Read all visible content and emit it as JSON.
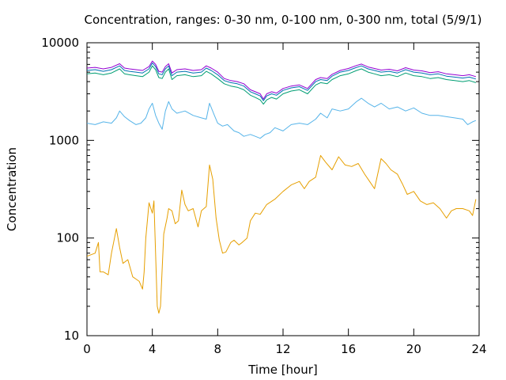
{
  "chart_data": {
    "type": "line",
    "title": "Concentration, ranges: 0-30 nm, 0-100 nm, 0-300 nm, total (5/9/1)",
    "xlabel": "Time [hour]",
    "ylabel": "Concentration",
    "xlim": [
      0,
      24
    ],
    "ylim": [
      10,
      10000
    ],
    "yscale": "log",
    "grid": false,
    "legend": "none",
    "x_ticks": [
      0,
      4,
      8,
      12,
      16,
      20,
      24
    ],
    "x_tick_labels": [
      "0",
      "4",
      "8",
      "12",
      "16",
      "20",
      "24"
    ],
    "y_ticks": [
      10,
      100,
      1000,
      10000
    ],
    "y_tick_labels": [
      "10",
      "100",
      "1000",
      "10000"
    ],
    "series": [
      {
        "color": "#e69f00",
        "x": [
          0,
          0.5,
          0.7,
          0.8,
          1.0,
          1.3,
          1.5,
          1.8,
          2.0,
          2.2,
          2.5,
          2.8,
          3.0,
          3.2,
          3.4,
          3.5,
          3.6,
          3.8,
          4.0,
          4.1,
          4.3,
          4.4,
          4.5,
          4.7,
          4.9,
          5.0,
          5.2,
          5.4,
          5.6,
          5.8,
          6.0,
          6.2,
          6.5,
          6.8,
          7.0,
          7.3,
          7.5,
          7.7,
          7.9,
          8.1,
          8.3,
          8.5,
          8.8,
          9.0,
          9.3,
          9.5,
          9.8,
          10.0,
          10.3,
          10.6,
          11.0,
          11.5,
          12.0,
          12.5,
          13.0,
          13.3,
          13.6,
          14.0,
          14.3,
          14.6,
          15.0,
          15.4,
          15.8,
          16.2,
          16.6,
          17.0,
          17.3,
          17.6,
          18.0,
          18.3,
          18.6,
          19.0,
          19.3,
          19.6,
          20.0,
          20.4,
          20.8,
          21.2,
          21.6,
          22.0,
          22.3,
          22.6,
          23.0,
          23.4,
          23.6,
          23.8
        ],
        "y": [
          65,
          70,
          90,
          45,
          45,
          42,
          70,
          125,
          80,
          55,
          60,
          40,
          38,
          36,
          30,
          45,
          100,
          230,
          180,
          240,
          20,
          17,
          20,
          110,
          160,
          200,
          190,
          140,
          150,
          310,
          220,
          190,
          200,
          130,
          190,
          210,
          560,
          400,
          160,
          95,
          70,
          72,
          90,
          95,
          85,
          90,
          100,
          150,
          180,
          175,
          220,
          250,
          300,
          350,
          380,
          320,
          380,
          420,
          700,
          600,
          500,
          680,
          560,
          540,
          580,
          450,
          380,
          320,
          650,
          580,
          500,
          450,
          360,
          280,
          300,
          240,
          220,
          230,
          200,
          160,
          190,
          200,
          200,
          190,
          170,
          250
        ]
      },
      {
        "color": "#56b4e9",
        "x": [
          0,
          0.5,
          1.0,
          1.5,
          1.8,
          2.0,
          2.3,
          2.6,
          3.0,
          3.3,
          3.6,
          3.8,
          4.0,
          4.2,
          4.4,
          4.6,
          4.8,
          5.0,
          5.2,
          5.5,
          6.0,
          6.5,
          7.0,
          7.3,
          7.5,
          7.8,
          8.0,
          8.3,
          8.6,
          9.0,
          9.3,
          9.6,
          10.0,
          10.3,
          10.6,
          10.9,
          11.2,
          11.5,
          12.0,
          12.5,
          13.0,
          13.5,
          14.0,
          14.3,
          14.7,
          15.0,
          15.5,
          16.0,
          16.5,
          16.8,
          17.2,
          17.6,
          18.0,
          18.5,
          19.0,
          19.5,
          20.0,
          20.5,
          21.0,
          21.5,
          22.0,
          22.5,
          23.0,
          23.3,
          23.6,
          23.8
        ],
        "y": [
          1500,
          1450,
          1550,
          1500,
          1700,
          2000,
          1750,
          1600,
          1450,
          1500,
          1700,
          2100,
          2400,
          1800,
          1500,
          1300,
          2000,
          2500,
          2100,
          1900,
          2000,
          1800,
          1700,
          1650,
          2400,
          1800,
          1500,
          1400,
          1450,
          1250,
          1200,
          1100,
          1150,
          1100,
          1050,
          1150,
          1200,
          1350,
          1250,
          1450,
          1500,
          1450,
          1650,
          1900,
          1700,
          2100,
          2000,
          2100,
          2500,
          2700,
          2400,
          2200,
          2400,
          2100,
          2200,
          2000,
          2150,
          1900,
          1800,
          1800,
          1750,
          1700,
          1650,
          1450,
          1550,
          1600
        ]
      },
      {
        "color": "#009e73",
        "x": [
          0,
          0.5,
          1.0,
          1.5,
          2.0,
          2.3,
          2.6,
          3.0,
          3.4,
          3.8,
          4.0,
          4.2,
          4.4,
          4.6,
          4.8,
          5.0,
          5.2,
          5.5,
          6.0,
          6.5,
          7.0,
          7.3,
          7.6,
          8.0,
          8.4,
          8.8,
          9.2,
          9.6,
          10.0,
          10.3,
          10.6,
          10.8,
          11.0,
          11.3,
          11.6,
          12.0,
          12.5,
          13.0,
          13.5,
          14.0,
          14.3,
          14.7,
          15.0,
          15.5,
          16.0,
          16.5,
          16.8,
          17.2,
          17.6,
          18.0,
          18.5,
          19.0,
          19.5,
          20.0,
          20.5,
          21.0,
          21.5,
          22.0,
          22.5,
          23.0,
          23.4,
          23.8
        ],
        "y": [
          4800,
          4900,
          4700,
          4900,
          5400,
          4800,
          4700,
          4600,
          4500,
          5000,
          5800,
          5300,
          4400,
          4300,
          5000,
          5400,
          4200,
          4600,
          4700,
          4500,
          4600,
          5100,
          4800,
          4300,
          3800,
          3600,
          3500,
          3300,
          2900,
          2750,
          2600,
          2350,
          2600,
          2750,
          2650,
          3000,
          3200,
          3300,
          3000,
          3700,
          3900,
          3800,
          4200,
          4600,
          4800,
          5200,
          5400,
          5000,
          4800,
          4600,
          4700,
          4500,
          4900,
          4600,
          4500,
          4300,
          4400,
          4200,
          4100,
          4000,
          4100,
          3900
        ]
      },
      {
        "color": "#0072b2",
        "x": [
          0,
          0.5,
          1.0,
          1.5,
          2.0,
          2.3,
          2.6,
          3.0,
          3.4,
          3.8,
          4.0,
          4.2,
          4.4,
          4.6,
          4.8,
          5.0,
          5.2,
          5.5,
          6.0,
          6.5,
          7.0,
          7.3,
          7.6,
          8.0,
          8.4,
          8.8,
          9.2,
          9.6,
          10.0,
          10.3,
          10.6,
          10.8,
          11.0,
          11.3,
          11.6,
          12.0,
          12.5,
          13.0,
          13.5,
          14.0,
          14.3,
          14.7,
          15.0,
          15.5,
          16.0,
          16.5,
          16.8,
          17.2,
          17.6,
          18.0,
          18.5,
          19.0,
          19.5,
          20.0,
          20.5,
          21.0,
          21.5,
          22.0,
          22.5,
          23.0,
          23.4,
          23.8
        ],
        "y": [
          5200,
          5300,
          5100,
          5300,
          5800,
          5200,
          5100,
          5000,
          4900,
          5400,
          6200,
          5700,
          4800,
          4700,
          5400,
          5800,
          4600,
          5000,
          5100,
          4900,
          5000,
          5500,
          5200,
          4700,
          4100,
          3900,
          3800,
          3600,
          3150,
          3000,
          2850,
          2550,
          2850,
          3000,
          2900,
          3250,
          3450,
          3550,
          3250,
          4000,
          4200,
          4100,
          4550,
          5000,
          5200,
          5600,
          5800,
          5400,
          5200,
          5000,
          5100,
          4900,
          5300,
          5000,
          4900,
          4700,
          4800,
          4550,
          4450,
          4350,
          4450,
          4250
        ]
      },
      {
        "color": "#9400d3",
        "x": [
          0,
          0.5,
          1.0,
          1.5,
          2.0,
          2.3,
          2.6,
          3.0,
          3.4,
          3.8,
          4.0,
          4.2,
          4.4,
          4.6,
          4.8,
          5.0,
          5.2,
          5.5,
          6.0,
          6.5,
          7.0,
          7.3,
          7.6,
          8.0,
          8.4,
          8.8,
          9.2,
          9.6,
          10.0,
          10.3,
          10.6,
          10.8,
          11.0,
          11.3,
          11.6,
          12.0,
          12.5,
          13.0,
          13.5,
          14.0,
          14.3,
          14.7,
          15.0,
          15.5,
          16.0,
          16.5,
          16.8,
          17.2,
          17.6,
          18.0,
          18.5,
          19.0,
          19.5,
          20.0,
          20.5,
          21.0,
          21.5,
          22.0,
          22.5,
          23.0,
          23.4,
          23.8
        ],
        "y": [
          5500,
          5600,
          5400,
          5600,
          6100,
          5500,
          5400,
          5300,
          5200,
          5700,
          6500,
          6000,
          5100,
          5000,
          5700,
          6100,
          4900,
          5300,
          5400,
          5200,
          5300,
          5800,
          5500,
          5000,
          4300,
          4100,
          4000,
          3800,
          3300,
          3150,
          3000,
          2650,
          3000,
          3150,
          3050,
          3400,
          3600,
          3700,
          3400,
          4200,
          4400,
          4300,
          4750,
          5200,
          5450,
          5850,
          6050,
          5650,
          5450,
          5250,
          5350,
          5150,
          5550,
          5250,
          5150,
          4950,
          5050,
          4800,
          4700,
          4600,
          4700,
          4500
        ]
      }
    ]
  }
}
